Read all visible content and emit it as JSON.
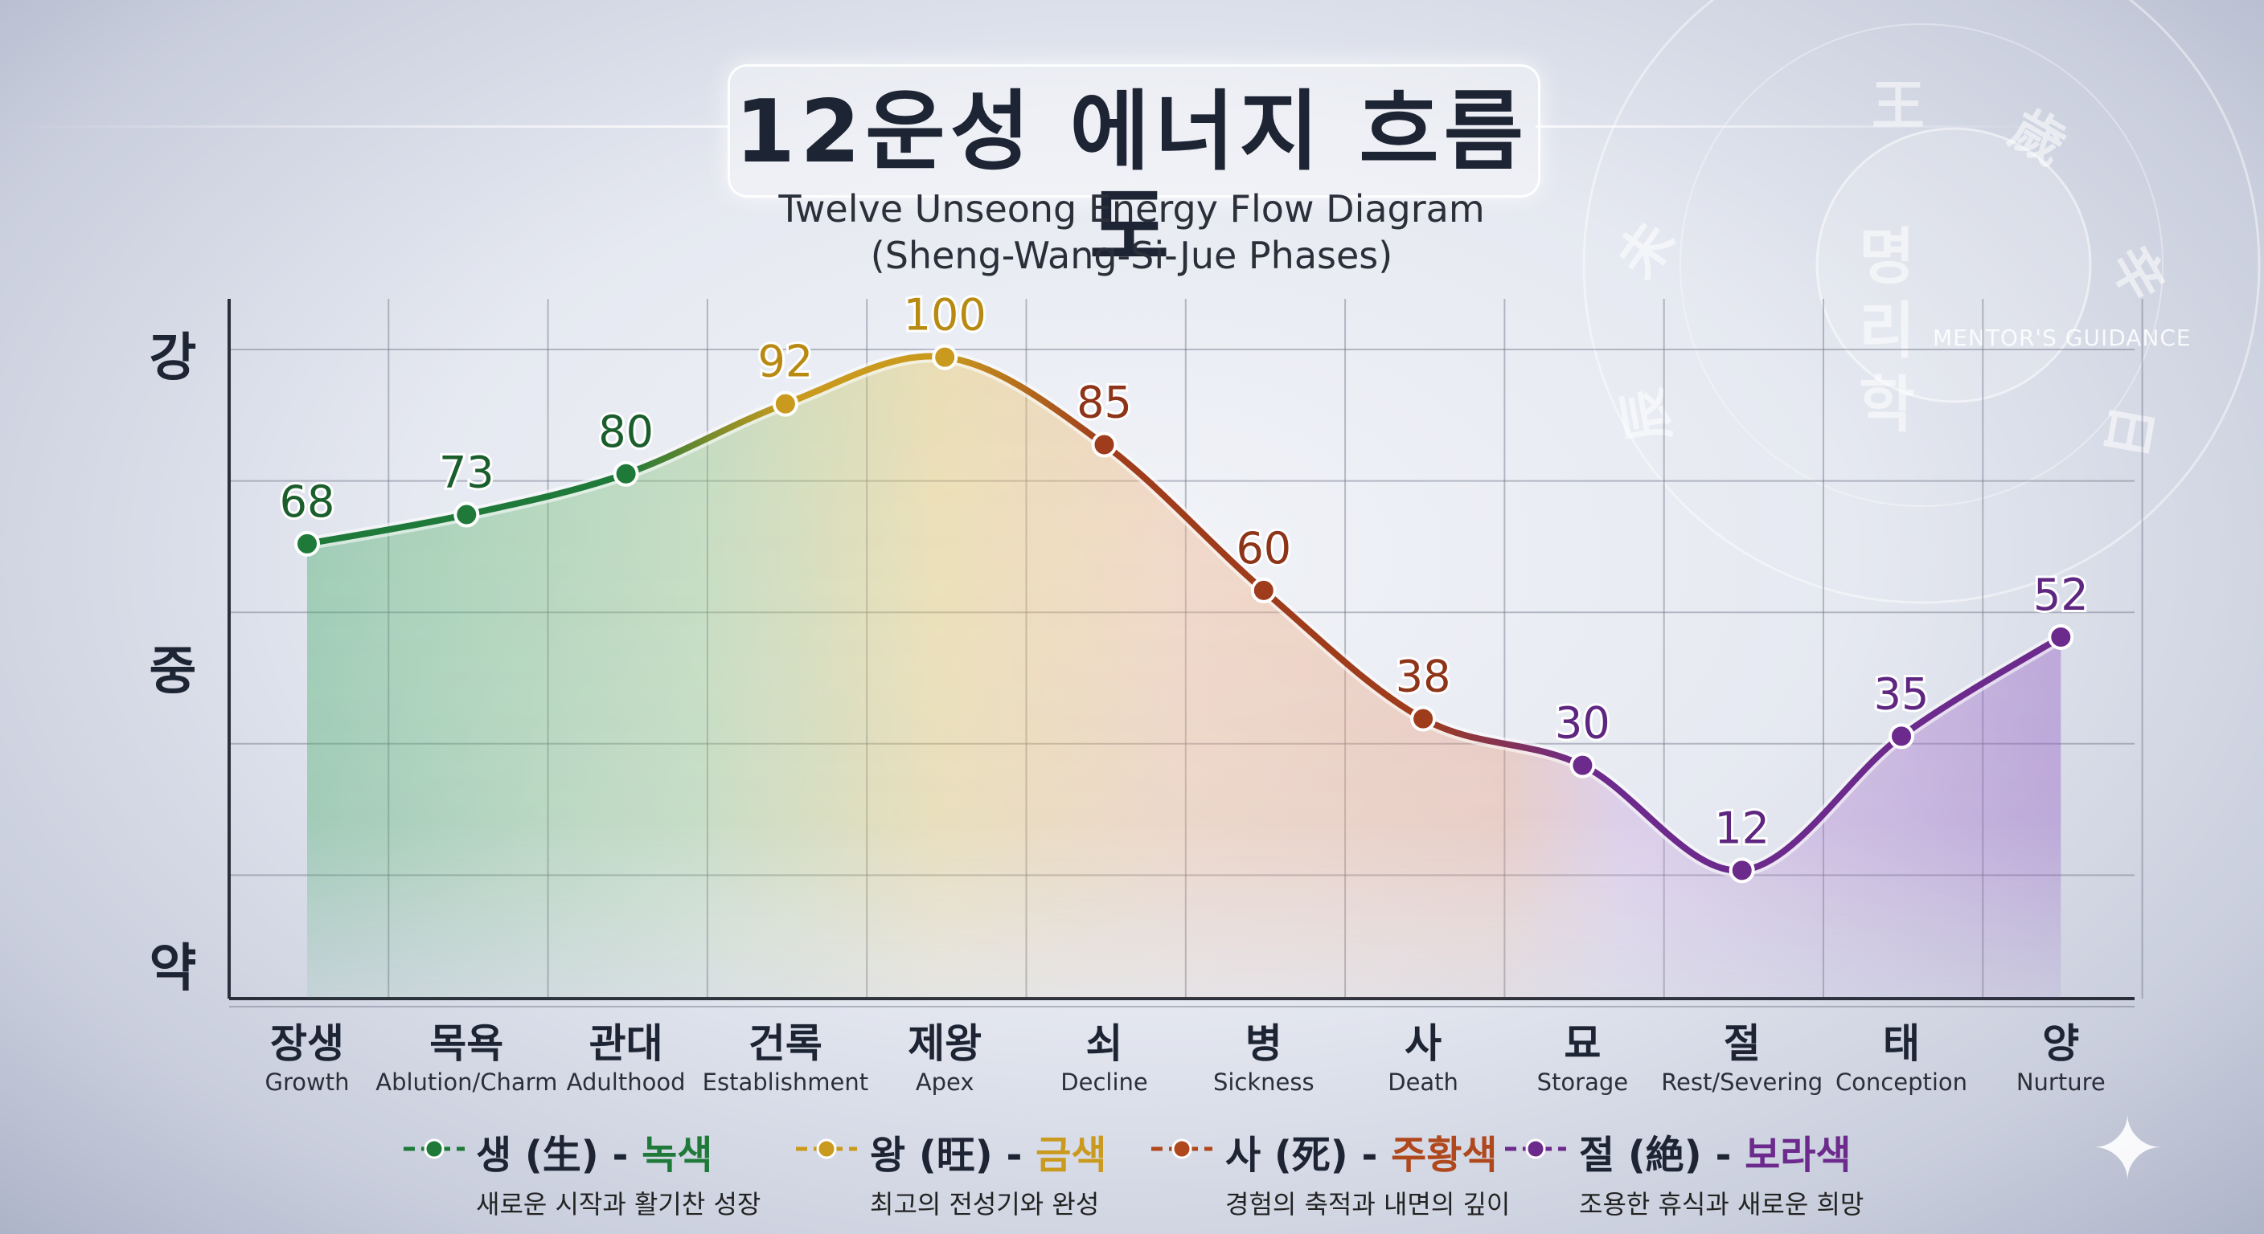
{
  "title": "12운성 에너지 흐름도",
  "subtitle_1": "Twelve Unseong Energy Flow Diagram",
  "subtitle_2": "(Sheng-Wang-Si-Jue Phases)",
  "watermark": {
    "label": "MENTOR'S GUIDANCE",
    "vertical_text": [
      "명",
      "리",
      "학"
    ]
  },
  "chart_data": {
    "type": "line",
    "categories": [
      "장생",
      "목욕",
      "관대",
      "건록",
      "제왕",
      "쇠",
      "병",
      "사",
      "묘",
      "절",
      "태",
      "양"
    ],
    "category_sublabels": [
      "Growth",
      "Ablution/Charm",
      "Adulthood",
      "Establishment",
      "Apex",
      "Decline",
      "Sickness",
      "Death",
      "Storage",
      "Rest/Severing",
      "Conception",
      "Nurture"
    ],
    "values": [
      68,
      73,
      80,
      92,
      100,
      85,
      60,
      38,
      30,
      12,
      35,
      52
    ],
    "y_tick_labels": [
      "강",
      "중",
      "약"
    ],
    "ylim": [
      -10,
      110
    ],
    "grid": true,
    "legend_position": "bottom",
    "point_colors": [
      "#1f7a3a",
      "#1f7a3a",
      "#1f7a3a",
      "#c99a1e",
      "#c99a1e",
      "#9e3c1c",
      "#9e3c1c",
      "#9e3c1c",
      "#6c2a8c",
      "#6c2a8c",
      "#6c2a8c",
      "#6c2a8c"
    ],
    "label_colors": [
      "#1a5e2c",
      "#1a5e2c",
      "#1a5e2c",
      "#b88a12",
      "#b88a12",
      "#8e3418",
      "#8e3418",
      "#8e3418",
      "#5e2680",
      "#5e2680",
      "#5e2680",
      "#5e2680"
    ],
    "legend": [
      {
        "phase": "생 (生)",
        "color_name": "녹색",
        "desc": "새로운 시작과 활기찬 성장",
        "color": "#1f7a3a"
      },
      {
        "phase": "왕 (旺)",
        "color_name": "금색",
        "desc": "최고의 전성기와 완성",
        "color": "#c99a1e"
      },
      {
        "phase": "사 (死)",
        "color_name": "주황색",
        "desc": "경험의 축적과 내면의 깊이",
        "color": "#b0481e"
      },
      {
        "phase": "절 (絶)",
        "color_name": "보라색",
        "desc": "조용한 휴식과 새로운 희망",
        "color": "#6c2a8c"
      }
    ],
    "colors": {
      "green": "#1f7a3a",
      "gold": "#c99a1e",
      "rust": "#9e3c1c",
      "purple": "#6c2a8c",
      "grid": "#6e7484",
      "axis": "#2a2f3a"
    }
  }
}
